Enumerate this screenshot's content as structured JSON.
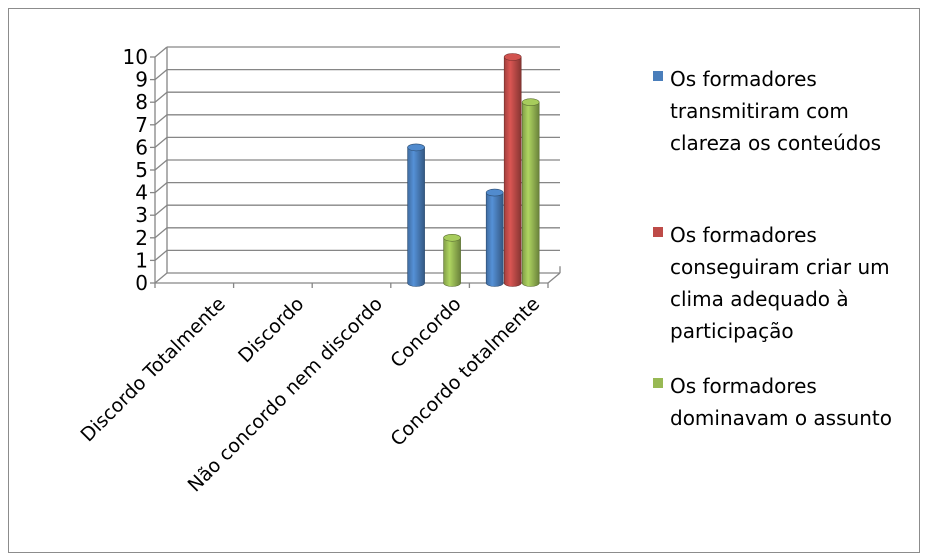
{
  "chart_data": {
    "type": "bar",
    "categories": [
      "Discordo Totalmente",
      "Discordo",
      "Não concordo nem discordo",
      "Concordo",
      "Concordo totalmente"
    ],
    "series": [
      {
        "name": "Os formadores transmitiram com clareza os conteúdos",
        "values": [
          0,
          0,
          0,
          6,
          4
        ],
        "color": "#4a7ebb"
      },
      {
        "name": "Os formadores conseguiram criar um clima adequado à participação",
        "values": [
          0,
          0,
          0,
          0,
          10
        ],
        "color": "#be4b48"
      },
      {
        "name": "Os formadores dominavam o assunto",
        "values": [
          0,
          0,
          0,
          2,
          8
        ],
        "color": "#98b954"
      }
    ],
    "yticks": [
      0,
      1,
      2,
      3,
      4,
      5,
      6,
      7,
      8,
      9,
      10
    ],
    "ylim": [
      0,
      10
    ],
    "legend_position": "right",
    "legend_lines": [
      [
        "Os formadores",
        "transmitiram com",
        "clareza os conteúdos"
      ],
      [
        "Os formadores",
        "conseguiram criar um",
        "clima adequado à",
        "participação"
      ],
      [
        "Os formadores",
        "dominavam o assunto"
      ]
    ],
    "grid": true,
    "style": "3d-column"
  }
}
